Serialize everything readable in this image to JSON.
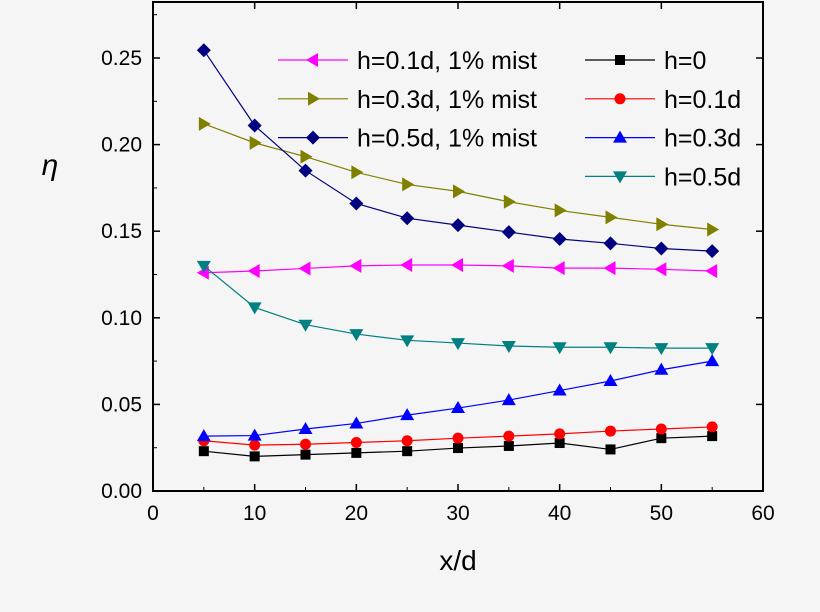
{
  "chart_data": {
    "type": "line",
    "xlabel": "x/d",
    "ylabel": "η",
    "xlim": [
      0,
      60
    ],
    "ylim": [
      0,
      0.27
    ],
    "xticks": [
      "0",
      "10",
      "20",
      "30",
      "40",
      "50",
      "60"
    ],
    "yticks": [
      "0.00",
      "0.05",
      "0.10",
      "0.15",
      "0.20",
      "0.25"
    ],
    "grid": false,
    "legend": "top-right",
    "x": [
      5,
      10,
      15,
      20,
      25,
      30,
      35,
      40,
      45,
      50,
      55
    ],
    "series": [
      {
        "name": "h=0.1d, 1% mist",
        "color": "#ff00ff",
        "marker": "triangle-left",
        "values": [
          0.126,
          0.127,
          0.1285,
          0.13,
          0.1305,
          0.1305,
          0.13,
          0.1287,
          0.1287,
          0.128,
          0.127
        ]
      },
      {
        "name": "h=0.3d, 1% mist",
        "color": "#808000",
        "marker": "triangle-right",
        "values": [
          0.212,
          0.201,
          0.193,
          0.184,
          0.177,
          0.173,
          0.167,
          0.162,
          0.158,
          0.154,
          0.151
        ]
      },
      {
        "name": "h=0.5d, 1% mist",
        "color": "#000080",
        "marker": "diamond",
        "values": [
          0.2545,
          0.211,
          0.185,
          0.166,
          0.1575,
          0.1535,
          0.1495,
          0.1455,
          0.143,
          0.14,
          0.1385
        ]
      },
      {
        "name": "h=0",
        "color": "#000000",
        "marker": "square",
        "values": [
          0.023,
          0.02,
          0.021,
          0.022,
          0.023,
          0.0248,
          0.026,
          0.0277,
          0.024,
          0.0305,
          0.0317
        ]
      },
      {
        "name": "h=0.1d",
        "color": "#ff0000",
        "marker": "circle",
        "values": [
          0.029,
          0.0265,
          0.027,
          0.028,
          0.029,
          0.0305,
          0.0317,
          0.033,
          0.0346,
          0.0358,
          0.037
        ]
      },
      {
        "name": "h=0.3d",
        "color": "#0000ff",
        "marker": "triangle-up",
        "values": [
          0.0317,
          0.032,
          0.0358,
          0.039,
          0.0438,
          0.0479,
          0.0525,
          0.058,
          0.0635,
          0.07,
          0.075
        ]
      },
      {
        "name": "h=0.5d",
        "color": "#008080",
        "marker": "triangle-down",
        "values": [
          0.13,
          0.106,
          0.096,
          0.0906,
          0.087,
          0.0854,
          0.0837,
          0.083,
          0.083,
          0.0825,
          0.0825
        ]
      }
    ]
  }
}
